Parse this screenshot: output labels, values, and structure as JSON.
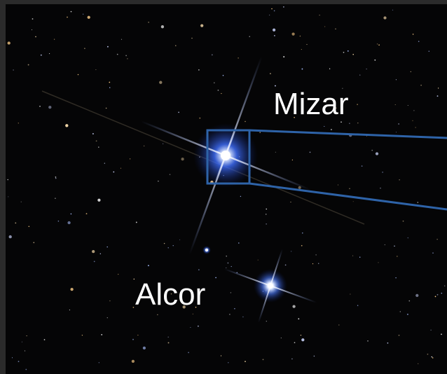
{
  "annotations": [
    {
      "label": "Mizar"
    },
    {
      "label": "Alcor"
    }
  ]
}
